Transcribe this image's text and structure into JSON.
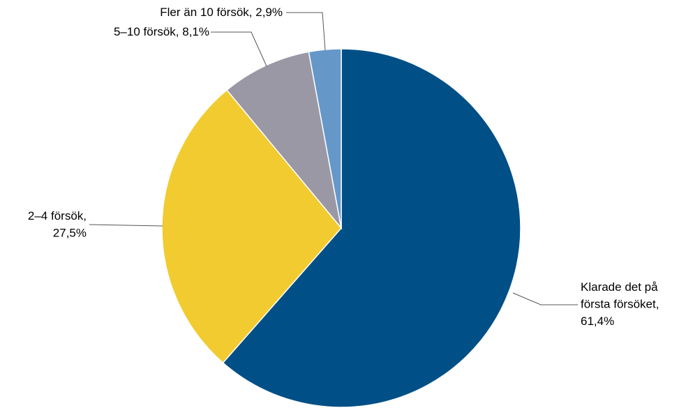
{
  "chart_data": {
    "type": "pie",
    "values": [
      61.4,
      27.5,
      8.1,
      2.9
    ],
    "value_labels": [
      "Klarade det på\nförsta försöket,\n61,4%",
      "2–4 försök,\n27,5%",
      "5–10 försök, 8,1%",
      "Fler än 10 försök, 2,9%"
    ],
    "colors": [
      "#004f87",
      "#f1cb2f",
      "#9b98a6",
      "#6598c9"
    ]
  }
}
